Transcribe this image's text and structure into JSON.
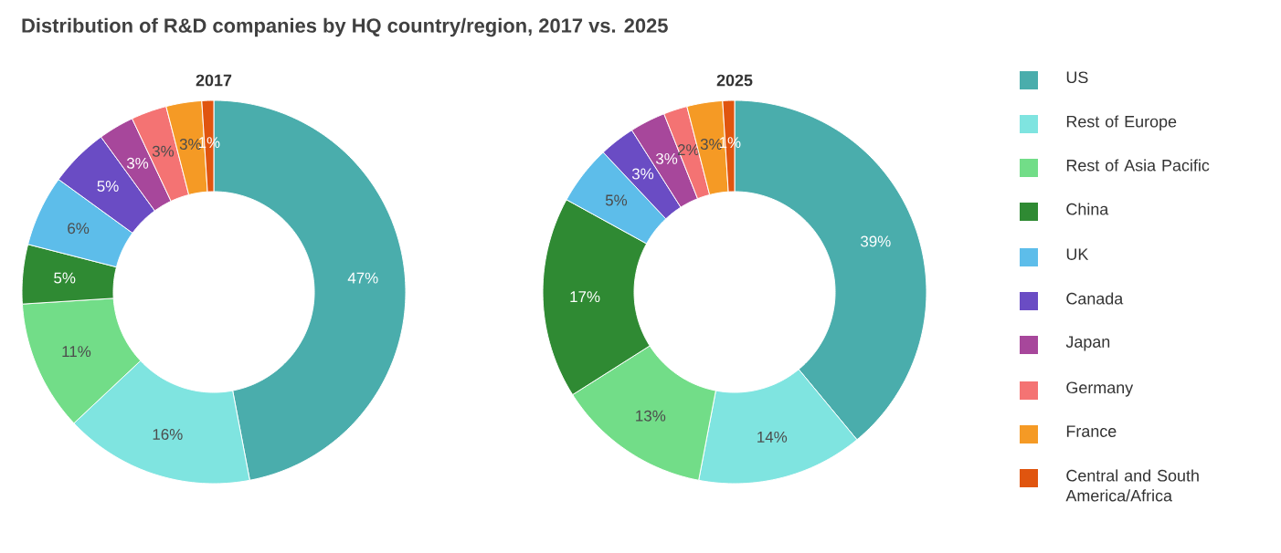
{
  "chart_data": [
    {
      "type": "donut",
      "title": "Distribution of R&D companies by HQ country/region, 2017 vs. 2025",
      "subtitle": "2017",
      "values": [
        47,
        16,
        11,
        5,
        6,
        5,
        3,
        3,
        3,
        1
      ],
      "value_labels": [
        "47%",
        "16%",
        "11%",
        "5%",
        "6%",
        "5%",
        "3%",
        "3%",
        "3%",
        "1%"
      ],
      "colors": [
        "#4aadac",
        "#7fe4e0",
        "#72dd88",
        "#2f8a33",
        "#5dbdea",
        "#6a4cc4",
        "#a7479b",
        "#f47373",
        "#f59a25",
        "#e0550f"
      ]
    },
    {
      "type": "donut",
      "subtitle": "2025",
      "legend": "right",
      "categories": [
        "US",
        "Rest of Europe",
        "Rest of Asia Pacific",
        "China",
        "UK",
        "Canada",
        "Japan",
        "Germany",
        "France",
        "Central and South America/Africa"
      ],
      "values": [
        39,
        14,
        13,
        17,
        5,
        3,
        3,
        2,
        3,
        1
      ],
      "value_labels": [
        "39%",
        "14%",
        "13%",
        "17%",
        "5%",
        "3%",
        "3%",
        "2%",
        "3%",
        "1%"
      ],
      "colors": [
        "#4aadac",
        "#7fe4e0",
        "#72dd88",
        "#2f8a33",
        "#5dbdea",
        "#6a4cc4",
        "#a7479b",
        "#f47373",
        "#f59a25",
        "#e0550f"
      ]
    }
  ]
}
